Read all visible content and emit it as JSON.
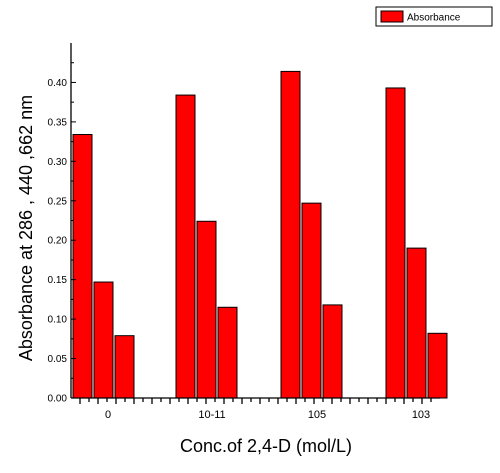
{
  "chart_data": {
    "type": "bar",
    "categories": [
      "0",
      "10-11",
      "10-5",
      "10-3"
    ],
    "category_labels": [
      "0",
      "10-11",
      "105",
      "103"
    ],
    "series": [
      {
        "name": "Absorbance",
        "values": [
          0.334,
          0.384,
          0.414,
          0.393
        ]
      },
      {
        "values": [
          0.147,
          0.224,
          0.247,
          0.19
        ]
      },
      {
        "values": [
          0.079,
          0.115,
          0.118,
          0.082
        ]
      }
    ],
    "bar_color": "#ff0000",
    "bar_edge_color": "#000000",
    "xlabel": "Conc.of 2,4-D (mol/L)",
    "ylabel": "Absorbance at 286 , 440 ,662 nm",
    "ylim": [
      0.0,
      0.45
    ],
    "yticks": [
      "0.00",
      "0.05",
      "0.10",
      "0.15",
      "0.20",
      "0.25",
      "0.30",
      "0.35",
      "0.40"
    ],
    "legend": {
      "label": "Absorbance",
      "position": "top-right"
    },
    "grid": false
  }
}
